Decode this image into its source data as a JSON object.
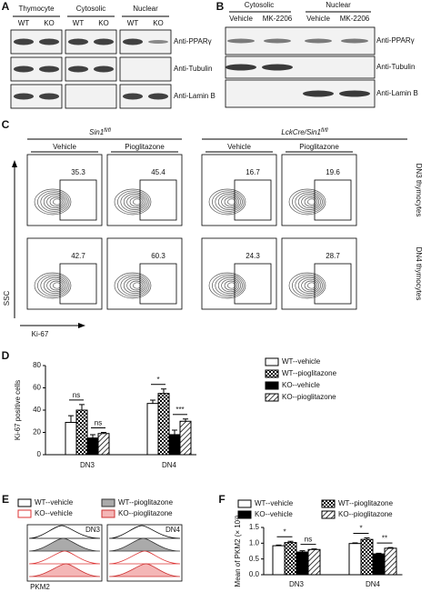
{
  "panel_a": {
    "label": "A",
    "groups": [
      "Thymocyte",
      "Cytosolic",
      "Nuclear"
    ],
    "lanes": [
      "WT",
      "KO",
      "WT",
      "KO",
      "WT",
      "KO"
    ],
    "rows": [
      "Anti-PPARγ",
      "Anti-Tubulin",
      "Anti-Lamin B"
    ]
  },
  "panel_b": {
    "label": "B",
    "groups": [
      "Cytosolic",
      "Nuclear"
    ],
    "lanes": [
      "Vehicle",
      "MK-2206",
      "Vehicle",
      "MK-2206"
    ],
    "rows": [
      "Anti-PPARγ",
      "Anti-Tubulin",
      "Anti-Lamin B"
    ]
  },
  "panel_c": {
    "label": "C",
    "genotypes": [
      {
        "name": "Sin1",
        "sup": "fl/fl"
      },
      {
        "name": "LckCre/Sin1",
        "sup": "fl/fl"
      }
    ],
    "treatments": [
      "Vehicle",
      "Pioglitazone",
      "Vehicle",
      "Pioglitazone"
    ],
    "rows": [
      {
        "name": "DN3 thymocytes",
        "percents": [
          35.3,
          45.4,
          16.7,
          19.6
        ]
      },
      {
        "name": "DN4 thymocytes",
        "percents": [
          42.7,
          60.3,
          24.3,
          28.7
        ]
      }
    ],
    "y_label": "SSC",
    "x_label": "Ki-67"
  },
  "chart_data": [
    {
      "type": "bar",
      "panel_label": "D",
      "y_label": "Ki-67 positive cells",
      "categories": [
        "DN3",
        "DN4"
      ],
      "ylim": [
        0,
        80
      ],
      "yticks": [
        0,
        20,
        40,
        60,
        80
      ],
      "series": [
        {
          "name": "WT--vehicle",
          "color": "#ffffff",
          "pattern": "solid",
          "values": [
            29,
            46
          ],
          "errors": [
            6,
            3
          ]
        },
        {
          "name": "WT--pioglitazone",
          "color": "#ffffff",
          "pattern": "checker",
          "values": [
            40,
            55
          ],
          "errors": [
            5,
            4
          ]
        },
        {
          "name": "KO--vehicle",
          "color": "#000000",
          "pattern": "solid",
          "values": [
            15,
            18
          ],
          "errors": [
            3,
            4
          ]
        },
        {
          "name": "KO--pioglitazone",
          "color": "#ffffff",
          "pattern": "hatch",
          "values": [
            19,
            30
          ],
          "errors": [
            1,
            2
          ]
        }
      ],
      "annotations": [
        "ns",
        "ns",
        "*",
        "***"
      ]
    },
    {
      "type": "bar",
      "panel_label": "F",
      "y_label": "Mean of PKM2 (× 10³)",
      "categories": [
        "DN3",
        "DN4"
      ],
      "ylim": [
        0,
        1.5
      ],
      "yticks": [
        {
          "value": 0,
          "label": "0.0"
        },
        0.5,
        {
          "value": 1,
          "label": "1.0"
        },
        1.5
      ],
      "series": [
        {
          "name": "WT--vehicle",
          "color": "#ffffff",
          "pattern": "solid",
          "values": [
            0.92,
            0.99
          ],
          "errors": [
            0.02,
            0.02
          ]
        },
        {
          "name": "WT--pioglitazone",
          "color": "#ffffff",
          "pattern": "checker",
          "values": [
            1.02,
            1.12
          ],
          "errors": [
            0.04,
            0.05
          ]
        },
        {
          "name": "KO--vehicle",
          "color": "#000000",
          "pattern": "solid",
          "values": [
            0.72,
            0.66
          ],
          "errors": [
            0.04,
            0.02
          ]
        },
        {
          "name": "KO--pioglitazone",
          "color": "#ffffff",
          "pattern": "hatch",
          "values": [
            0.8,
            0.84
          ],
          "errors": [
            0.02,
            0.02
          ]
        }
      ],
      "annotations": [
        "*",
        "ns",
        "*",
        "**"
      ]
    }
  ],
  "panel_e": {
    "label": "E",
    "legend": [
      "WT--vehicle",
      "WT--pioglitazone",
      "KO--vehicle",
      "KO--pioglitazone"
    ],
    "panels": [
      "DN3",
      "DN4"
    ],
    "x_label": "PKM2"
  }
}
